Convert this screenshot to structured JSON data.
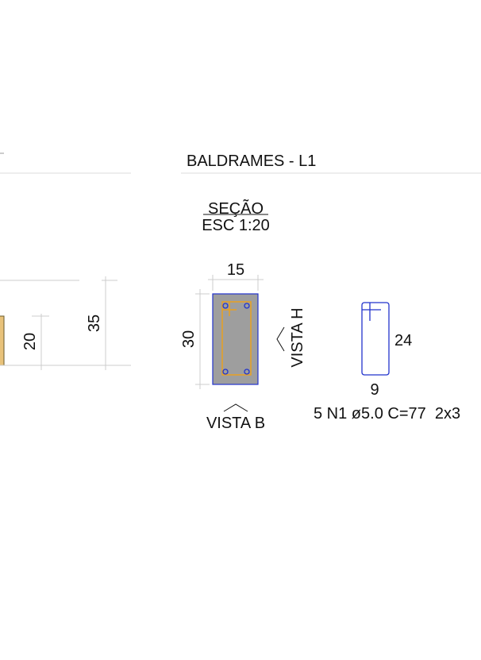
{
  "title": "BALDRAMES - L1",
  "section": {
    "label": "SEÇÃO",
    "scale": "ESC 1:20"
  },
  "left_dims": {
    "height_a": "20",
    "height_b": "35"
  },
  "section_dims": {
    "width": "15",
    "height": "30"
  },
  "views": {
    "side": "VISTA H",
    "bottom": "VISTA B"
  },
  "stirrup": {
    "height": "24",
    "width": "9",
    "spec": "5 N1 ø5.0 C=77  2x3"
  }
}
